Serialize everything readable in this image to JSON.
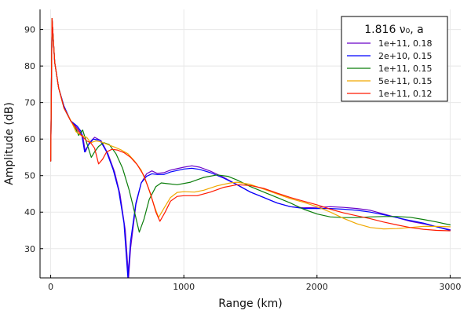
{
  "chart_data": {
    "type": "line",
    "xlabel": "Range (km)",
    "ylabel": "Amplitude (dB)",
    "xlim": [
      -80,
      3080
    ],
    "ylim": [
      22,
      95.5
    ],
    "xticks": [
      0,
      1000,
      2000,
      3000
    ],
    "yticks": [
      30,
      40,
      50,
      60,
      70,
      80,
      90
    ],
    "grid": true,
    "legend": {
      "title": "1.816 ν₀, a",
      "placement": "top-right"
    },
    "series": [
      {
        "name": "1e+11, 0.18",
        "color": "#6a00c8",
        "points": [
          [
            0,
            54
          ],
          [
            10,
            93
          ],
          [
            30,
            81
          ],
          [
            60,
            74
          ],
          [
            100,
            69
          ],
          [
            150,
            65
          ],
          [
            200,
            63
          ],
          [
            240,
            61
          ],
          [
            260,
            56.5
          ],
          [
            290,
            59
          ],
          [
            330,
            60.5
          ],
          [
            380,
            59.5
          ],
          [
            430,
            56
          ],
          [
            480,
            51
          ],
          [
            520,
            45
          ],
          [
            560,
            35
          ],
          [
            585,
            22
          ],
          [
            600,
            30
          ],
          [
            640,
            42
          ],
          [
            680,
            48
          ],
          [
            720,
            50.5
          ],
          [
            760,
            51.3
          ],
          [
            800,
            50.6
          ],
          [
            850,
            50.8
          ],
          [
            900,
            51.5
          ],
          [
            1000,
            52.3
          ],
          [
            1060,
            52.7
          ],
          [
            1120,
            52.3
          ],
          [
            1200,
            51.2
          ],
          [
            1300,
            49.5
          ],
          [
            1400,
            47.5
          ],
          [
            1500,
            45.5
          ],
          [
            1600,
            44
          ],
          [
            1700,
            42.5
          ],
          [
            1800,
            41.5
          ],
          [
            1900,
            41.2
          ],
          [
            2000,
            41.3
          ],
          [
            2100,
            41.5
          ],
          [
            2200,
            41.3
          ],
          [
            2300,
            41
          ],
          [
            2400,
            40.5
          ],
          [
            2500,
            39.5
          ],
          [
            2600,
            38.5
          ],
          [
            2700,
            37.5
          ],
          [
            2800,
            36.8
          ],
          [
            2900,
            36
          ],
          [
            3000,
            35.2
          ]
        ]
      },
      {
        "name": "2e+10, 0.15",
        "color": "#0000ff",
        "points": [
          [
            0,
            54
          ],
          [
            10,
            93
          ],
          [
            30,
            81
          ],
          [
            60,
            74
          ],
          [
            100,
            69
          ],
          [
            150,
            65
          ],
          [
            200,
            63.5
          ],
          [
            230,
            62
          ],
          [
            255,
            56.5
          ],
          [
            285,
            58.5
          ],
          [
            320,
            60
          ],
          [
            370,
            59.7
          ],
          [
            420,
            56.5
          ],
          [
            470,
            51.5
          ],
          [
            510,
            46
          ],
          [
            550,
            37
          ],
          [
            580,
            22
          ],
          [
            600,
            32
          ],
          [
            640,
            42.5
          ],
          [
            680,
            48
          ],
          [
            720,
            49.8
          ],
          [
            760,
            50.5
          ],
          [
            800,
            50.3
          ],
          [
            850,
            50.3
          ],
          [
            900,
            51
          ],
          [
            1000,
            51.8
          ],
          [
            1060,
            52
          ],
          [
            1120,
            51.7
          ],
          [
            1200,
            50.8
          ],
          [
            1300,
            49.3
          ],
          [
            1400,
            47.5
          ],
          [
            1500,
            45.5
          ],
          [
            1600,
            44
          ],
          [
            1700,
            42.5
          ],
          [
            1800,
            41.5
          ],
          [
            1900,
            41
          ],
          [
            2000,
            41
          ],
          [
            2100,
            41
          ],
          [
            2200,
            40.8
          ],
          [
            2300,
            40.5
          ],
          [
            2400,
            40
          ],
          [
            2500,
            39.3
          ],
          [
            2600,
            38.5
          ],
          [
            2700,
            37.7
          ],
          [
            2800,
            37
          ],
          [
            2900,
            36
          ],
          [
            3000,
            35
          ]
        ]
      },
      {
        "name": "1e+11, 0.15",
        "color": "#0a7d0a",
        "points": [
          [
            0,
            54
          ],
          [
            10,
            93
          ],
          [
            30,
            81
          ],
          [
            60,
            74
          ],
          [
            100,
            68.5
          ],
          [
            150,
            65
          ],
          [
            180,
            63.5
          ],
          [
            210,
            61
          ],
          [
            240,
            62.5
          ],
          [
            270,
            59
          ],
          [
            305,
            55
          ],
          [
            330,
            56.5
          ],
          [
            360,
            58
          ],
          [
            400,
            59
          ],
          [
            440,
            58.5
          ],
          [
            490,
            56
          ],
          [
            540,
            52
          ],
          [
            590,
            46
          ],
          [
            630,
            40
          ],
          [
            665,
            34.5
          ],
          [
            700,
            38
          ],
          [
            740,
            43.5
          ],
          [
            790,
            47
          ],
          [
            830,
            48
          ],
          [
            880,
            47.8
          ],
          [
            950,
            47.5
          ],
          [
            1050,
            48.2
          ],
          [
            1150,
            49.5
          ],
          [
            1250,
            50.2
          ],
          [
            1330,
            49.8
          ],
          [
            1400,
            48.8
          ],
          [
            1500,
            47
          ],
          [
            1600,
            45.5
          ],
          [
            1700,
            44
          ],
          [
            1800,
            42.5
          ],
          [
            1900,
            40.8
          ],
          [
            2000,
            39.5
          ],
          [
            2100,
            38.7
          ],
          [
            2200,
            38.5
          ],
          [
            2300,
            38.5
          ],
          [
            2400,
            38.7
          ],
          [
            2500,
            38.8
          ],
          [
            2600,
            38.8
          ],
          [
            2700,
            38.6
          ],
          [
            2800,
            38
          ],
          [
            2900,
            37.3
          ],
          [
            3000,
            36.5
          ]
        ]
      },
      {
        "name": "5e+11, 0.15",
        "color": "#f0a800",
        "points": [
          [
            0,
            54
          ],
          [
            10,
            93
          ],
          [
            30,
            81
          ],
          [
            60,
            74
          ],
          [
            100,
            68.5
          ],
          [
            150,
            65.2
          ],
          [
            190,
            62
          ],
          [
            230,
            61
          ],
          [
            270,
            60.5
          ],
          [
            300,
            59
          ],
          [
            340,
            59.5
          ],
          [
            380,
            59.2
          ],
          [
            430,
            58.5
          ],
          [
            480,
            57.8
          ],
          [
            530,
            57
          ],
          [
            580,
            56
          ],
          [
            630,
            54
          ],
          [
            680,
            51.5
          ],
          [
            730,
            47
          ],
          [
            780,
            41.5
          ],
          [
            810,
            38.5
          ],
          [
            850,
            41
          ],
          [
            900,
            44
          ],
          [
            950,
            45.4
          ],
          [
            1000,
            45.6
          ],
          [
            1080,
            45.5
          ],
          [
            1150,
            46
          ],
          [
            1250,
            47.2
          ],
          [
            1350,
            48
          ],
          [
            1400,
            48.2
          ],
          [
            1500,
            47.6
          ],
          [
            1600,
            46.3
          ],
          [
            1700,
            45
          ],
          [
            1800,
            43.7
          ],
          [
            1900,
            42.7
          ],
          [
            2000,
            41.5
          ],
          [
            2100,
            40
          ],
          [
            2200,
            38.3
          ],
          [
            2300,
            36.8
          ],
          [
            2400,
            35.8
          ],
          [
            2500,
            35.4
          ],
          [
            2600,
            35.5
          ],
          [
            2700,
            35.8
          ],
          [
            2800,
            36.1
          ],
          [
            2900,
            36.1
          ],
          [
            3000,
            36
          ]
        ]
      },
      {
        "name": "1e+11, 0.12",
        "color": "#ff1a00",
        "points": [
          [
            0,
            54
          ],
          [
            10,
            93
          ],
          [
            30,
            81
          ],
          [
            60,
            74
          ],
          [
            100,
            68.5
          ],
          [
            150,
            65
          ],
          [
            190,
            63
          ],
          [
            230,
            61
          ],
          [
            270,
            59.5
          ],
          [
            300,
            59
          ],
          [
            330,
            57.5
          ],
          [
            360,
            53.2
          ],
          [
            390,
            54.5
          ],
          [
            420,
            56.5
          ],
          [
            460,
            57.2
          ],
          [
            500,
            57
          ],
          [
            550,
            56.3
          ],
          [
            600,
            55
          ],
          [
            650,
            53
          ],
          [
            700,
            50
          ],
          [
            750,
            45
          ],
          [
            790,
            40
          ],
          [
            820,
            37.5
          ],
          [
            860,
            40
          ],
          [
            900,
            43
          ],
          [
            950,
            44.3
          ],
          [
            1000,
            44.5
          ],
          [
            1100,
            44.5
          ],
          [
            1200,
            45.5
          ],
          [
            1300,
            46.8
          ],
          [
            1400,
            47.5
          ],
          [
            1500,
            47.3
          ],
          [
            1600,
            46.5
          ],
          [
            1700,
            45.2
          ],
          [
            1800,
            44
          ],
          [
            1900,
            43
          ],
          [
            2000,
            42
          ],
          [
            2100,
            40.8
          ],
          [
            2200,
            39.8
          ],
          [
            2300,
            39
          ],
          [
            2400,
            38.2
          ],
          [
            2500,
            37.3
          ],
          [
            2600,
            36.5
          ],
          [
            2700,
            35.8
          ],
          [
            2800,
            35.3
          ],
          [
            2900,
            35
          ],
          [
            3000,
            34.9
          ]
        ]
      }
    ]
  }
}
